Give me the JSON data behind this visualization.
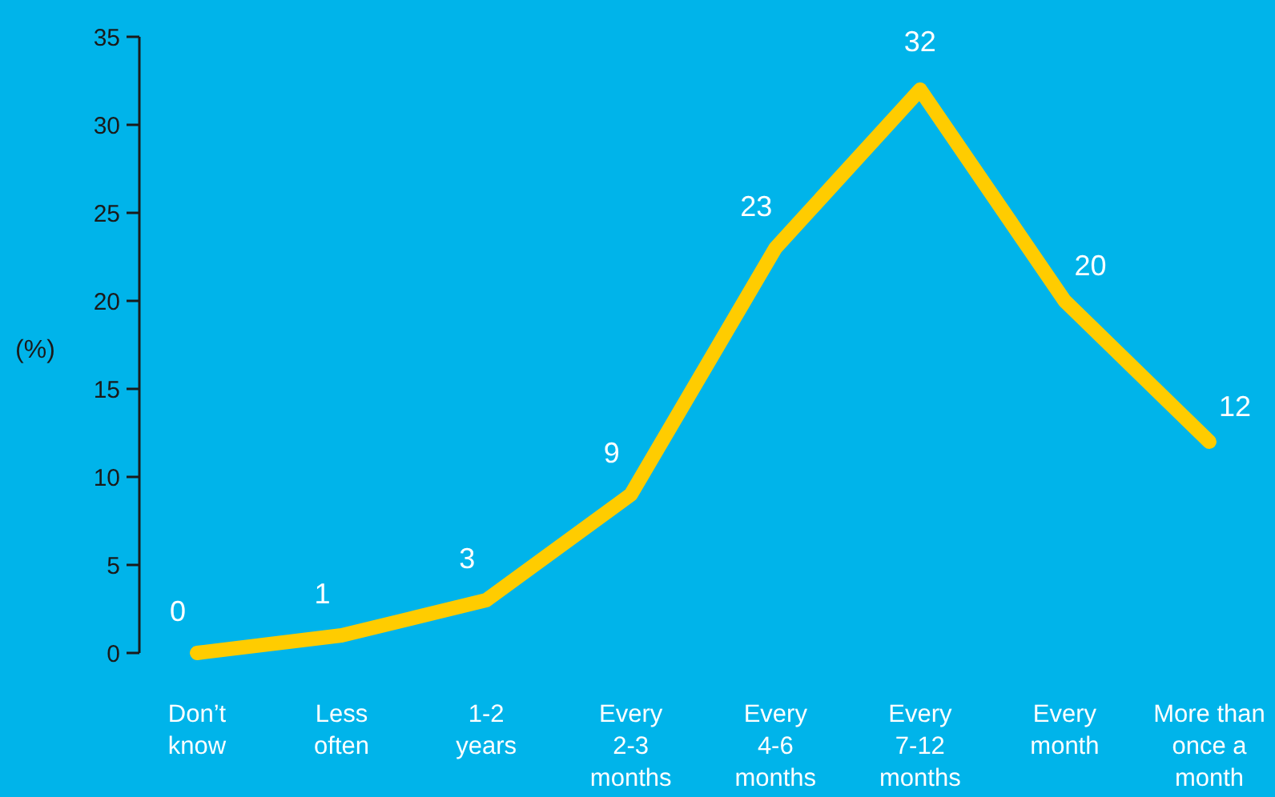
{
  "chart_data": {
    "type": "line",
    "ylabel": "(%)",
    "categories": [
      "Don’t\nknow",
      "Less\noften",
      "1-2\nyears",
      "Every\n2-3\nmonths",
      "Every\n4-6\nmonths",
      "Every\n7-12\nmonths",
      "Every\nmonth",
      "More than\nonce a\nmonth"
    ],
    "series": [
      {
        "color": "#ffcc00",
        "values": [
          0,
          1,
          3,
          9,
          23,
          32,
          20,
          12
        ]
      }
    ],
    "ylim": [
      0,
      35
    ],
    "yticks": [
      0,
      5,
      10,
      15,
      20,
      25,
      30,
      35
    ],
    "data_labels": true,
    "line_style": "solid"
  }
}
